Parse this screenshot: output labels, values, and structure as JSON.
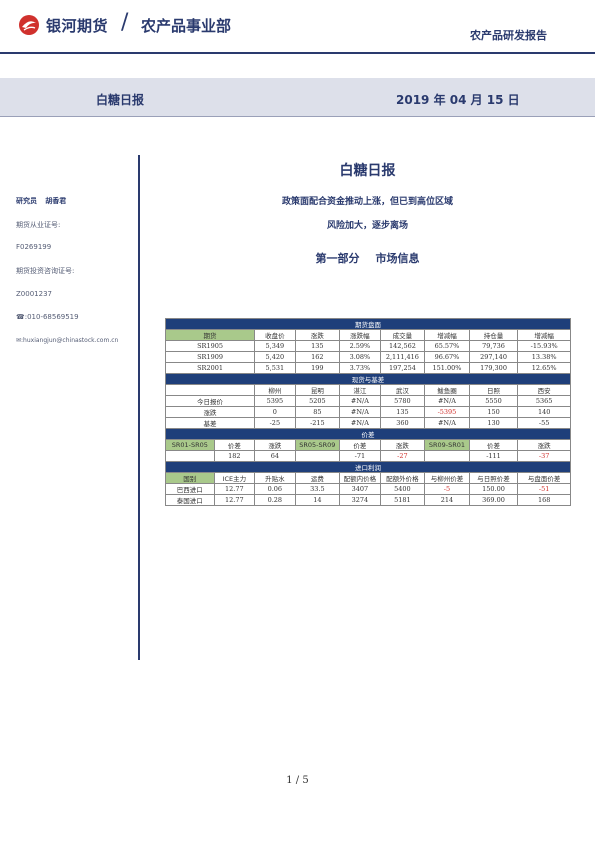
{
  "header": {
    "brand": "银河期货",
    "slash": "/",
    "dept": "农产品事业部",
    "report_type": "农产品研发报告",
    "band_title": "白糖日报",
    "band_date": "2019 年 04 月 15 日"
  },
  "sidebar": {
    "researcher_label": "研究员",
    "researcher_name": "胡香君",
    "license_label": "期货从业证号:",
    "license_value": "F0269199",
    "consult_label": "期货投资咨询证号:",
    "consult_value": "Z0001237",
    "phone": "☎:010-68569519",
    "email": "✉:huxiangjun@chinastock.com.cn"
  },
  "title": "白糖日报",
  "subtitle1": "政策面配合资金推动上涨，但已到高位区域",
  "subtitle2": "风险加大，逐步离场",
  "section": {
    "part": "第一部分",
    "name": "市场信息"
  },
  "futures": {
    "band": "期货盘面",
    "headers": [
      "期货",
      "收盘价",
      "涨跌",
      "涨跌幅",
      "成交量",
      "增减幅",
      "持仓量",
      "增减幅"
    ],
    "rows": [
      [
        "SR1905",
        "5,349",
        "135",
        "2.59%",
        "142,562",
        "65.57%",
        "79,736",
        "-15.93%"
      ],
      [
        "SR1909",
        "5,420",
        "162",
        "3.08%",
        "2,111,416",
        "96.67%",
        "297,140",
        "13.38%"
      ],
      [
        "SR2001",
        "5,531",
        "199",
        "3.73%",
        "197,254",
        "151.00%",
        "179,300",
        "12.65%"
      ]
    ]
  },
  "spot": {
    "band": "现货与基差",
    "headers": [
      "",
      "柳州",
      "昆明",
      "湛江",
      "武汉",
      "鲅鱼圈",
      "日照",
      "西安"
    ],
    "rows": [
      [
        "今日报价",
        "5395",
        "5205",
        "#N/A",
        "5780",
        "#N/A",
        "5550",
        "5365"
      ],
      [
        "涨跌",
        "0",
        "85",
        "#N/A",
        "135",
        "-5395",
        "150",
        "140"
      ],
      [
        "基差",
        "-25",
        "-215",
        "#N/A",
        "360",
        "#N/A",
        "130",
        "-55"
      ]
    ]
  },
  "spread": {
    "band": "价差",
    "headers": [
      "SR01-SR05",
      "价差",
      "涨跌",
      "SR05-SR09",
      "价差",
      "涨跌",
      "SR09-SR01",
      "价差",
      "涨跌"
    ],
    "row": [
      "",
      "182",
      "64",
      "",
      "-71",
      "-27",
      "",
      "-111",
      "-37"
    ]
  },
  "imports": {
    "band": "进口利润",
    "headers": [
      "国别",
      "ICE主力",
      "升贴水",
      "运费",
      "配额内价格",
      "配额外价格",
      "与柳州价差",
      "与日照价差",
      "与盘面价差"
    ],
    "rows": [
      [
        "巴西进口",
        "12.77",
        "0.06",
        "33.5",
        "3407",
        "5400",
        "-5",
        "150.00",
        "-51"
      ],
      [
        "泰国进口",
        "12.77",
        "0.28",
        "14",
        "3274",
        "5181",
        "214",
        "369.00",
        "168"
      ]
    ]
  },
  "footer": {
    "page": "1 / 5"
  },
  "colors": {
    "navy": "#2a3a6e",
    "band_bg": "#1f3f7a",
    "green": "#a9c98b",
    "negative": "#d0312d"
  }
}
